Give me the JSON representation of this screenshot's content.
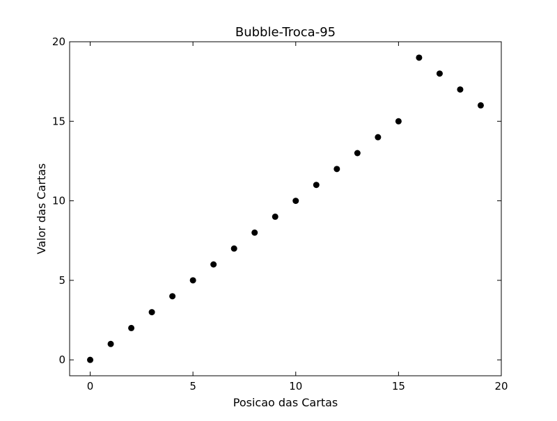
{
  "chart_data": {
    "type": "scatter",
    "title": "Bubble-Troca-95",
    "xlabel": "Posicao das Cartas",
    "ylabel": "Valor das Cartas",
    "xlim": [
      -1,
      20
    ],
    "ylim": [
      -1,
      20
    ],
    "xticks": [
      0,
      5,
      10,
      15,
      20
    ],
    "yticks": [
      0,
      5,
      10,
      15,
      20
    ],
    "grid": false,
    "marker_color": "#000000",
    "series": [
      {
        "x": [
          0,
          1,
          2,
          3,
          4,
          5,
          6,
          7,
          8,
          9,
          10,
          11,
          12,
          13,
          14,
          15,
          16,
          17,
          18,
          19
        ],
        "y": [
          0,
          1,
          2,
          3,
          4,
          5,
          6,
          7,
          8,
          9,
          10,
          11,
          12,
          13,
          14,
          15,
          19,
          18,
          17,
          16
        ]
      }
    ]
  }
}
